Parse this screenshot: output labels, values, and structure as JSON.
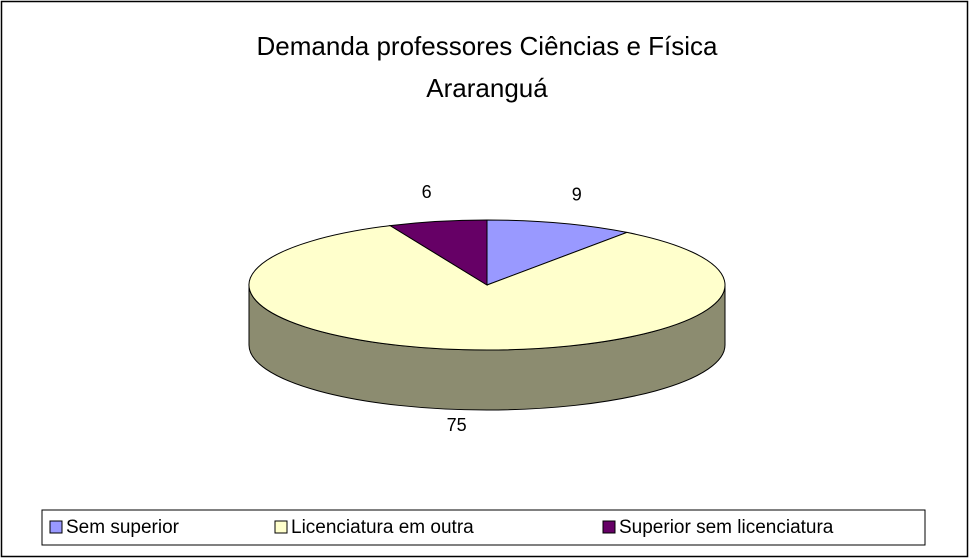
{
  "chart_data": {
    "type": "pie",
    "title": [
      "Demanda professores Ciências e Física",
      "Araranguá"
    ],
    "categories": [
      "Sem superior",
      "Licenciatura em outra",
      "Superior sem licenciatura"
    ],
    "values": [
      9,
      75,
      6
    ],
    "colors": [
      "#9999ff",
      "#ffffcc",
      "#660066"
    ],
    "legend": "bottom"
  }
}
